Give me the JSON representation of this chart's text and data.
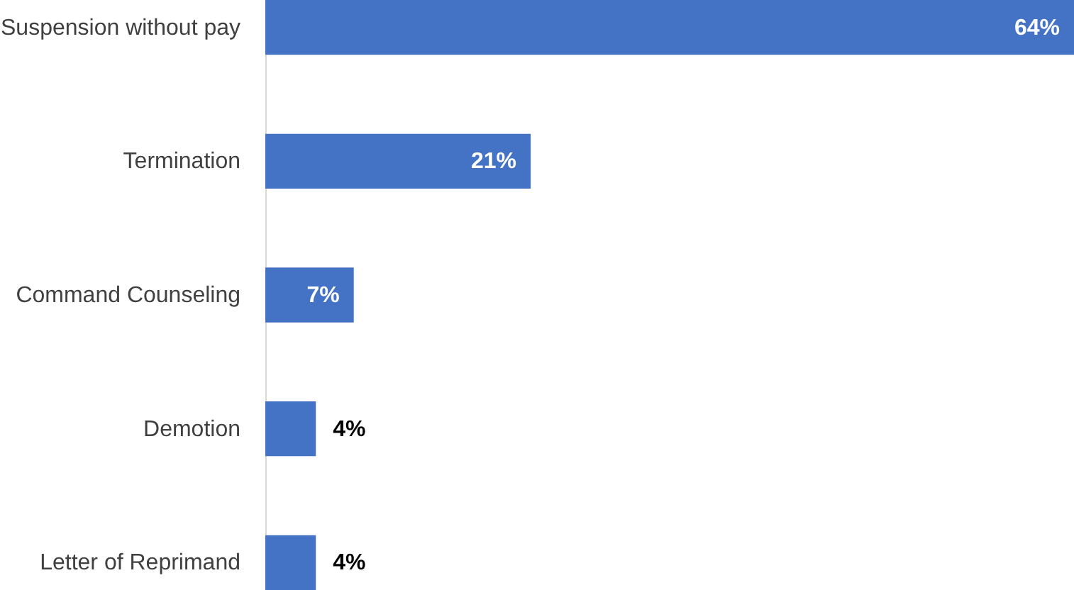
{
  "chart_data": {
    "type": "bar",
    "orientation": "horizontal",
    "categories": [
      "Suspension without pay",
      "Termination",
      "Command Counseling",
      "Demotion",
      "Letter of Reprimand"
    ],
    "values": [
      64,
      21,
      7,
      4,
      4
    ],
    "value_labels": [
      "64%",
      "21%",
      "7%",
      "4%",
      "4%"
    ],
    "color": "#4472c4",
    "tick_labels": "y"
  }
}
